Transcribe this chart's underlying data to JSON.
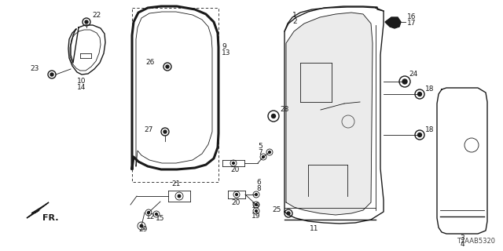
{
  "bg_color": "#ffffff",
  "diagram_code": "T2AAB5320",
  "line_color": "#1a1a1a",
  "label_fontsize": 6.5,
  "label_color": "#111111"
}
